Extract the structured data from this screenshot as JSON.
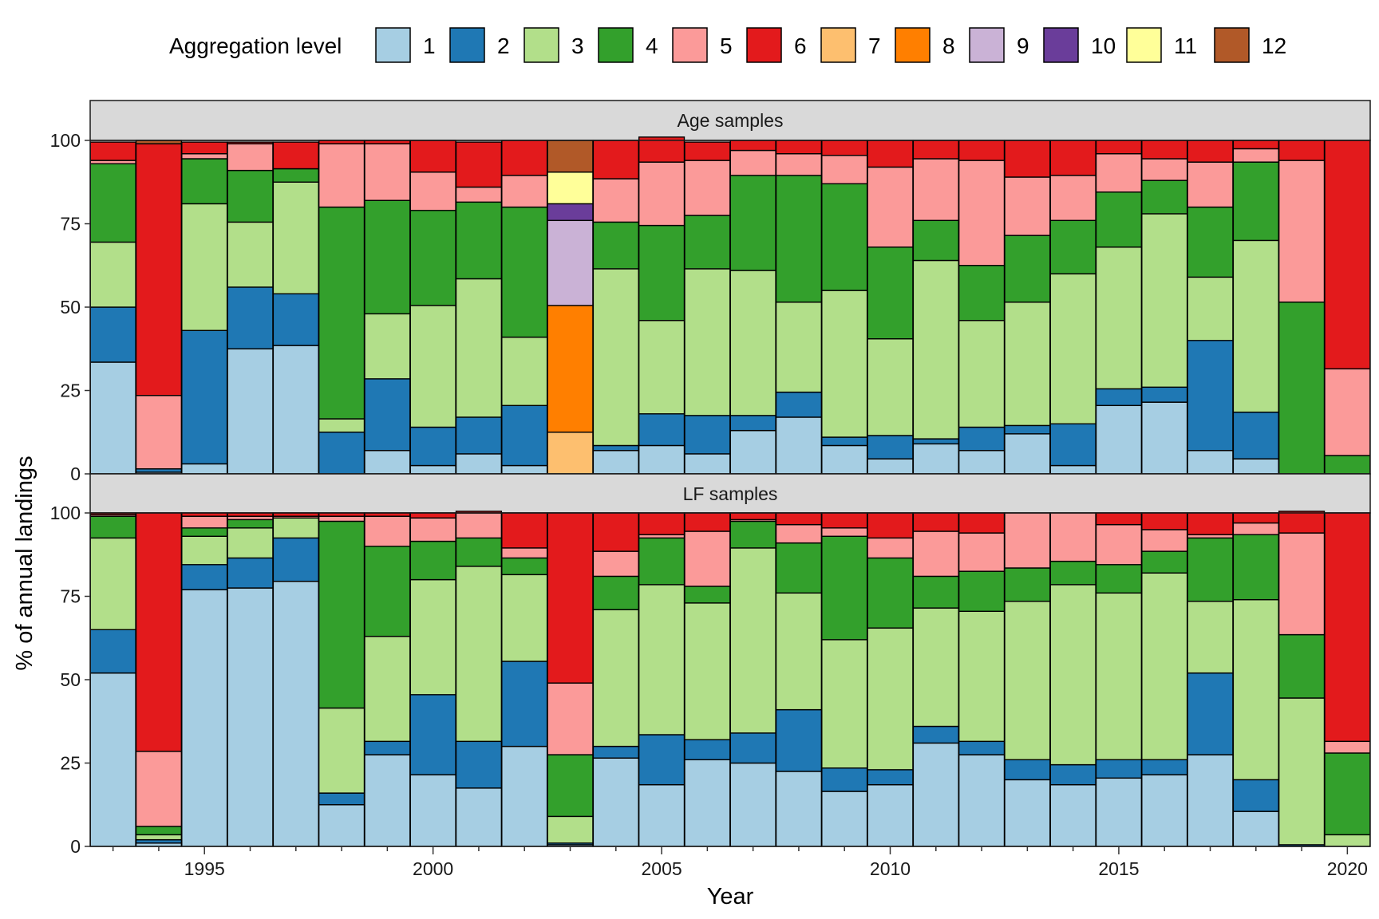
{
  "legend": {
    "title": "Aggregation level",
    "levels": [
      "1",
      "2",
      "3",
      "4",
      "5",
      "6",
      "7",
      "8",
      "9",
      "10",
      "11",
      "12"
    ],
    "colors": [
      "#a6cee3",
      "#1f78b4",
      "#b2df8a",
      "#33a02c",
      "#fb9a99",
      "#e31a1c",
      "#fdbf6f",
      "#ff7f00",
      "#cab2d6",
      "#6a3d9a",
      "#ffff99",
      "#b15928"
    ]
  },
  "chart_data": {
    "type": "bar",
    "stacked": true,
    "xlabel": "Year",
    "ylabel": "% of annual landings",
    "ylim": [
      0,
      100
    ],
    "y_ticks": [
      0,
      25,
      50,
      75,
      100
    ],
    "x_ticks": [
      1995,
      2000,
      2005,
      2010,
      2015,
      2020
    ],
    "years": [
      1993,
      1994,
      1995,
      1996,
      1997,
      1998,
      1999,
      2000,
      2001,
      2002,
      2003,
      2004,
      2005,
      2006,
      2007,
      2008,
      2009,
      2010,
      2011,
      2012,
      2013,
      2014,
      2015,
      2016,
      2017,
      2018,
      2019,
      2020
    ],
    "panels": [
      {
        "title": "Age samples",
        "series": [
          {
            "name": "1",
            "values": [
              33.5,
              0.5,
              3,
              37.5,
              38.5,
              0,
              7,
              2.5,
              6,
              2.5,
              0,
              7,
              8.5,
              6,
              13,
              17,
              8.5,
              4.5,
              9,
              7,
              12,
              2.5,
              20.5,
              21.5,
              7,
              4.5,
              0,
              0
            ]
          },
          {
            "name": "2",
            "values": [
              16.5,
              1,
              40,
              18.5,
              15.5,
              12.5,
              21.5,
              11.5,
              11,
              18,
              0,
              1.5,
              9.5,
              11.5,
              4.5,
              7.5,
              2.5,
              7,
              1.5,
              7,
              2.5,
              12.5,
              5,
              4.5,
              33,
              14,
              0,
              0
            ]
          },
          {
            "name": "3",
            "values": [
              19.5,
              0,
              38,
              19.5,
              33.5,
              4,
              19.5,
              36.5,
              41.5,
              20.5,
              0,
              53,
              28,
              44,
              43.5,
              27,
              44,
              29,
              53.5,
              32,
              37,
              45,
              42.5,
              52,
              19,
              51.5,
              0,
              0
            ]
          },
          {
            "name": "4",
            "values": [
              23.5,
              0,
              13.5,
              15.5,
              4,
              63.5,
              34,
              28.5,
              23,
              39,
              0,
              14,
              28.5,
              16,
              28.5,
              38,
              32,
              27.5,
              12,
              16.5,
              20,
              16,
              16.5,
              10,
              21,
              23.5,
              51.5,
              5.5
            ]
          },
          {
            "name": "5",
            "values": [
              1,
              22,
              1.5,
              8,
              0,
              19,
              17,
              11.5,
              4.5,
              9.5,
              0,
              13,
              19,
              16.5,
              7.5,
              6.5,
              8.5,
              24,
              18.5,
              31.5,
              17.5,
              13.5,
              11.5,
              6.5,
              13.5,
              4,
              42.5,
              26
            ]
          },
          {
            "name": "6",
            "values": [
              5.5,
              75.5,
              3.5,
              0.5,
              8,
              1,
              1,
              9.5,
              13.5,
              10.5,
              0,
              11.5,
              7.5,
              5.5,
              3,
              4,
              4.5,
              8,
              5.5,
              6,
              11,
              10.5,
              4,
              5.5,
              6.5,
              2.5,
              6,
              68.5
            ]
          },
          {
            "name": "7",
            "values": [
              0,
              0,
              0,
              0,
              0,
              0,
              0,
              0,
              0,
              0,
              12.5,
              0,
              0,
              0,
              0,
              0,
              0,
              0,
              0,
              0,
              0,
              0,
              0,
              0,
              0,
              0,
              0,
              0
            ]
          },
          {
            "name": "8",
            "values": [
              0,
              0,
              0,
              0,
              0,
              0,
              0,
              0,
              0,
              0,
              38,
              0,
              0,
              0,
              0,
              0,
              0,
              0,
              0,
              0,
              0,
              0,
              0,
              0,
              0,
              0,
              0,
              0
            ]
          },
          {
            "name": "9",
            "values": [
              0,
              0,
              0,
              0,
              0,
              0,
              0,
              0,
              0,
              0,
              25.5,
              0,
              0,
              0,
              0,
              0,
              0,
              0,
              0,
              0,
              0,
              0,
              0,
              0,
              0,
              0,
              0,
              0
            ]
          },
          {
            "name": "10",
            "values": [
              0,
              0,
              0,
              0,
              0,
              0,
              0,
              0,
              0,
              0,
              5,
              0,
              0,
              0,
              0,
              0,
              0,
              0,
              0,
              0,
              0,
              0,
              0,
              0,
              0,
              0,
              0,
              0
            ]
          },
          {
            "name": "11",
            "values": [
              0,
              0,
              0,
              0,
              0,
              0,
              0,
              0,
              0,
              0,
              9.5,
              0,
              0,
              0,
              0,
              0,
              0,
              0,
              0,
              0,
              0,
              0,
              0,
              0,
              0,
              0,
              0,
              0
            ]
          },
          {
            "name": "12",
            "values": [
              0,
              1,
              0,
              0,
              0,
              0,
              0,
              0,
              0,
              0,
              9.5,
              0,
              0,
              0,
              0,
              0,
              0,
              0,
              0,
              0,
              0,
              0,
              0,
              0,
              0,
              0,
              0,
              0
            ]
          }
        ]
      },
      {
        "title": "LF samples",
        "series": [
          {
            "name": "1",
            "values": [
              52,
              1,
              77,
              77.5,
              79.5,
              12.5,
              27.5,
              21.5,
              17.5,
              30,
              0.5,
              26.5,
              18.5,
              26,
              25,
              22.5,
              16.5,
              18.5,
              31,
              27.5,
              20,
              18.5,
              20.5,
              21.5,
              27.5,
              10.5,
              0,
              0
            ]
          },
          {
            "name": "2",
            "values": [
              13,
              1,
              7.5,
              9,
              13,
              3.5,
              4,
              24,
              14,
              25.5,
              0.5,
              3.5,
              15,
              6,
              9,
              18.5,
              7,
              4.5,
              5,
              4,
              6,
              6,
              5.5,
              4.5,
              24.5,
              9.5,
              0.5,
              0
            ]
          },
          {
            "name": "3",
            "values": [
              27.5,
              1.5,
              8.5,
              9,
              6,
              25.5,
              31.5,
              34.5,
              52.5,
              26,
              8,
              41,
              45,
              41,
              55.5,
              35,
              38.5,
              42.5,
              35.5,
              39,
              47.5,
              54,
              50,
              56,
              21.5,
              54,
              44,
              3.5
            ]
          },
          {
            "name": "4",
            "values": [
              6.5,
              2.5,
              2.5,
              2.5,
              0,
              56,
              27,
              11.5,
              8.5,
              5,
              18.5,
              10,
              14,
              5,
              8,
              15,
              31,
              21,
              9.5,
              12,
              10,
              7,
              8.5,
              6.5,
              19,
              19.5,
              19,
              24.5
            ]
          },
          {
            "name": "5",
            "values": [
              0.5,
              22.5,
              3.5,
              1,
              0.5,
              1.5,
              9,
              7,
              7.5,
              3,
              21.5,
              7.5,
              1,
              16.5,
              0.5,
              5.5,
              2.5,
              6,
              13.5,
              11.5,
              16.5,
              14.5,
              12,
              6.5,
              1,
              3.5,
              30.5,
              3.5
            ]
          },
          {
            "name": "6",
            "values": [
              0.5,
              71.5,
              1,
              1,
              1,
              1,
              1,
              1.5,
              0.5,
              10.5,
              51,
              11.5,
              6.5,
              5.5,
              2,
              3.5,
              4.5,
              7.5,
              5.5,
              6,
              0,
              0,
              3.5,
              5,
              6.5,
              3,
              6.5,
              68.5
            ]
          },
          {
            "name": "7",
            "values": [
              0,
              0,
              0,
              0,
              0,
              0,
              0,
              0,
              0,
              0,
              0,
              0,
              0,
              0,
              0,
              0,
              0,
              0,
              0,
              0,
              0,
              0,
              0,
              0,
              0,
              0,
              0,
              0
            ]
          },
          {
            "name": "8",
            "values": [
              0,
              0,
              0,
              0,
              0,
              0,
              0,
              0,
              0,
              0,
              0,
              0,
              0,
              0,
              0,
              0,
              0,
              0,
              0,
              0,
              0,
              0,
              0,
              0,
              0,
              0,
              0,
              0
            ]
          },
          {
            "name": "9",
            "values": [
              0,
              0,
              0,
              0,
              0,
              0,
              0,
              0,
              0,
              0,
              0,
              0,
              0,
              0,
              0,
              0,
              0,
              0,
              0,
              0,
              0,
              0,
              0,
              0,
              0,
              0,
              0,
              0
            ]
          },
          {
            "name": "10",
            "values": [
              0,
              0,
              0,
              0,
              0,
              0,
              0,
              0,
              0,
              0,
              0,
              0,
              0,
              0,
              0,
              0,
              0,
              0,
              0,
              0,
              0,
              0,
              0,
              0,
              0,
              0,
              0,
              0
            ]
          },
          {
            "name": "11",
            "values": [
              0,
              0,
              0,
              0,
              0,
              0,
              0,
              0,
              0,
              0,
              0,
              0,
              0,
              0,
              0,
              0,
              0,
              0,
              0,
              0,
              0,
              0,
              0,
              0,
              0,
              0,
              0,
              0
            ]
          },
          {
            "name": "12",
            "values": [
              0,
              0,
              0,
              0,
              0,
              0,
              0,
              0,
              0,
              0,
              0,
              0,
              0,
              0,
              0,
              0,
              0,
              0,
              0,
              0,
              0,
              0,
              0,
              0,
              0,
              0,
              0,
              0
            ]
          }
        ]
      }
    ]
  }
}
